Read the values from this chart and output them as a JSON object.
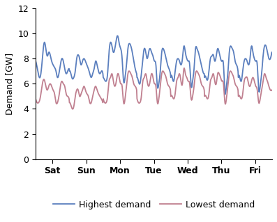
{
  "title": "",
  "ylabel": "Demand [GW]",
  "xlabel": "",
  "ylim": [
    0,
    12
  ],
  "yticks": [
    0,
    2,
    4,
    6,
    8,
    10,
    12
  ],
  "days": [
    "Sat",
    "Sun",
    "Mon",
    "Tue",
    "Wed",
    "Thu",
    "Fri"
  ],
  "high_color": "#5B7FBE",
  "low_color": "#C08090",
  "high_label": "Highest demand",
  "low_label": "Lowest demand",
  "line_width": 1.3,
  "figsize": [
    3.97,
    3.19
  ],
  "dpi": 100
}
